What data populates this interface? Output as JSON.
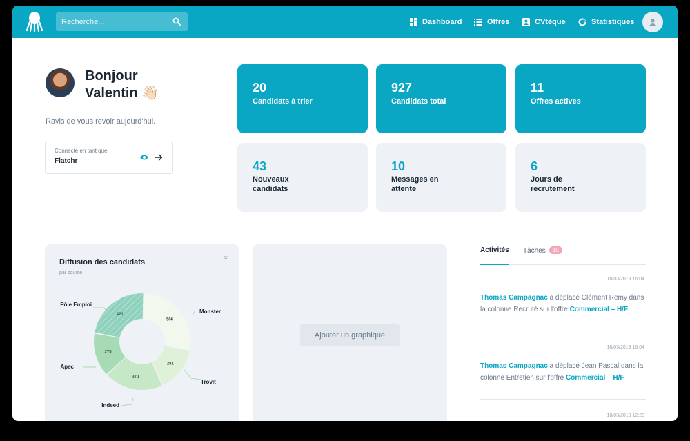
{
  "search": {
    "placeholder": "Recherche..."
  },
  "nav": {
    "dashboard": "Dashboard",
    "offres": "Offres",
    "cvtheque": "CVtèque",
    "statistiques": "Statistiques"
  },
  "greeting": {
    "line1": "Bonjour",
    "line2": "Valentin 👋🏻",
    "subtitle": "Ravis de vous revoir aujourd'hui."
  },
  "connected": {
    "label": "Connecté en tant que",
    "name": "Flatchr"
  },
  "stats": [
    {
      "value": "20",
      "label": "Candidats à trier"
    },
    {
      "value": "927",
      "label": "Candidats total"
    },
    {
      "value": "11",
      "label": "Offres actives"
    },
    {
      "value": "43",
      "label": "Nouveaux candidats"
    },
    {
      "value": "10",
      "label": "Messages en attente"
    },
    {
      "value": "6",
      "label": "Jours de recrutement"
    }
  ],
  "chart_panel": {
    "title": "Diffusion des candidats",
    "subtitle": "par source",
    "close": "×"
  },
  "chart_data": {
    "type": "pie",
    "categories": [
      "Monster",
      "Trovit",
      "Indeed",
      "Apec",
      "Pôle Emploi"
    ],
    "values": [
      506,
      281,
      370,
      275,
      421
    ],
    "colors": [
      "#f2f8ee",
      "#dff1d9",
      "#c6e8c7",
      "#a7dbb6",
      "#8fd1bd"
    ]
  },
  "add_panel": {
    "button": "Ajouter un graphique"
  },
  "tabs": {
    "activites": "Activités",
    "taches": "Tâches",
    "taches_count": "10"
  },
  "activities": [
    {
      "time": "18/03/2019 16:04",
      "user": "Thomas Campagnac",
      "text": " a déplacé Clément Remy dans la colonne Recruté sur l'offre ",
      "offer": "Commercial – H/F"
    },
    {
      "time": "18/03/2019 16:04",
      "user": "Thomas Campagnac",
      "text": " a déplacé Jean Pascal dans la colonne Entretien sur l'offre ",
      "offer": "Commercial – H/F"
    },
    {
      "time": "18/03/2019 12:20"
    }
  ],
  "colors": {
    "accent": "#0aa7c4",
    "card_gray": "#eef2f6",
    "badge": "#f3a6b6"
  }
}
